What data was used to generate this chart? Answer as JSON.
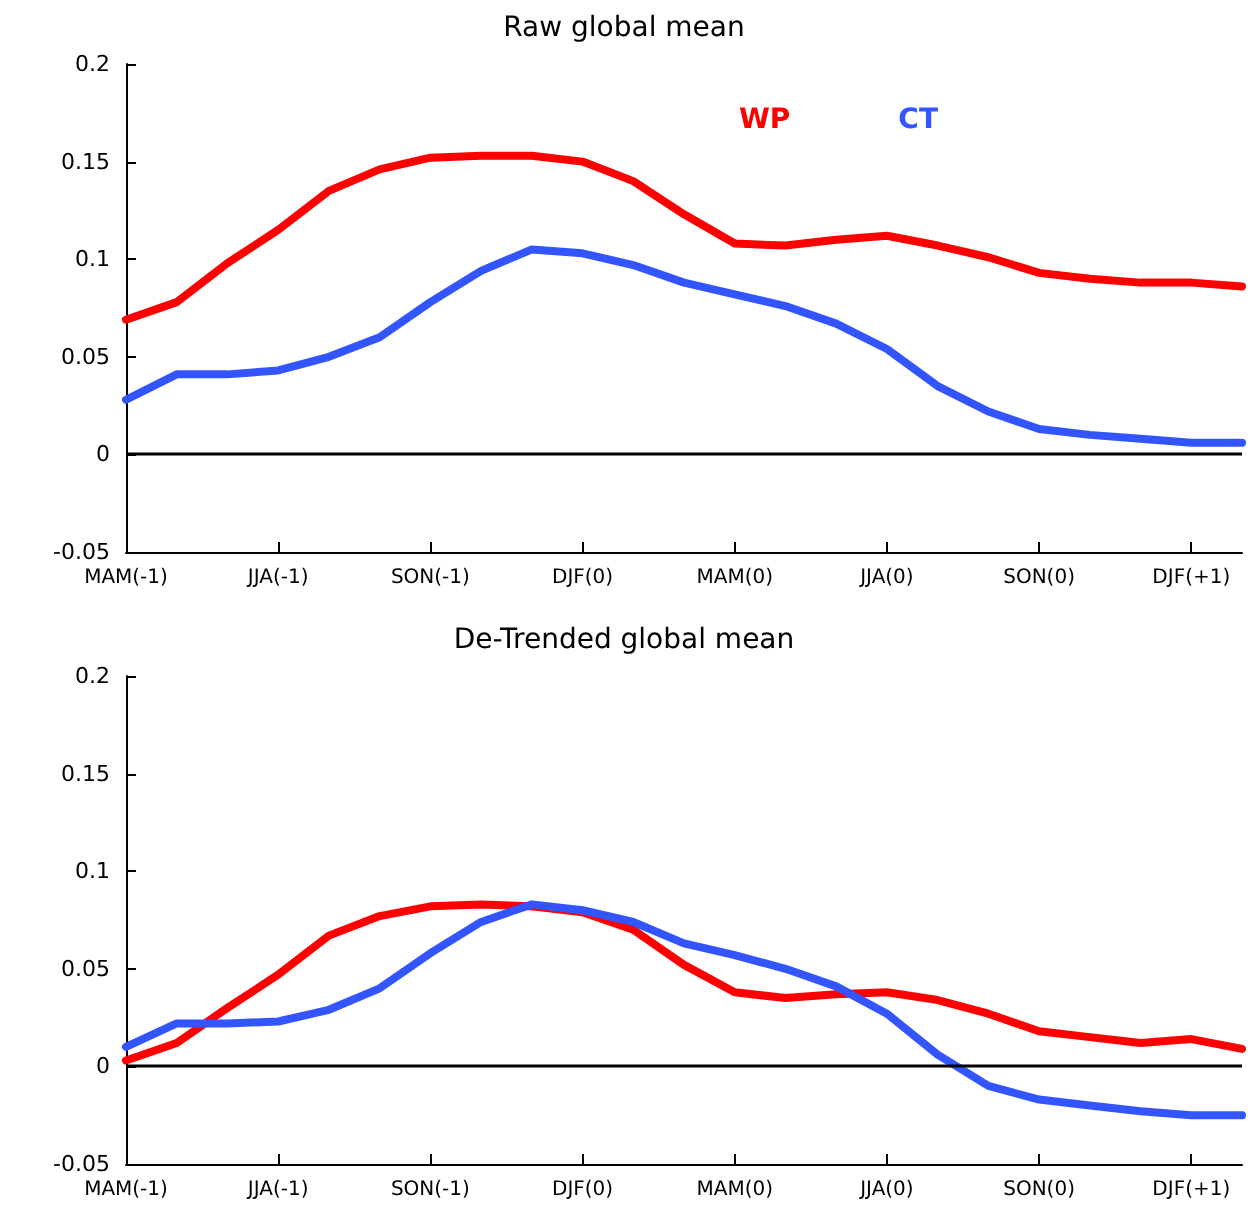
{
  "chart_data": [
    {
      "type": "line",
      "title": "Raw global mean",
      "categories": [
        "MAM(-1)",
        null,
        null,
        "JJA(-1)",
        null,
        null,
        "SON(-1)",
        null,
        null,
        "DJF(0)",
        null,
        null,
        "MAM(0)",
        null,
        null,
        "JJA(0)",
        null,
        null,
        "SON(0)",
        null,
        null,
        "DJF(+1)",
        null
      ],
      "series": [
        {
          "name": "WP",
          "color": "#ff0000",
          "values": [
            0.069,
            0.078,
            0.098,
            0.115,
            0.135,
            0.146,
            0.152,
            0.153,
            0.153,
            0.15,
            0.14,
            0.123,
            0.108,
            0.107,
            0.11,
            0.112,
            0.107,
            0.101,
            0.093,
            0.09,
            0.088,
            0.088,
            0.086
          ]
        },
        {
          "name": "CT",
          "color": "#3355ff",
          "values": [
            0.028,
            0.041,
            0.041,
            0.043,
            0.05,
            0.06,
            0.078,
            0.094,
            0.105,
            0.103,
            0.097,
            0.088,
            0.082,
            0.076,
            0.067,
            0.054,
            0.035,
            0.022,
            0.013,
            0.01,
            0.008,
            0.006,
            0.006
          ]
        }
      ],
      "ylim": [
        -0.05,
        0.2
      ],
      "yticks": [
        -0.05,
        0,
        0.05,
        0.1,
        0.15,
        0.2
      ],
      "ref_lines": [
        {
          "axis": "y",
          "value": 0,
          "color": "#000000"
        }
      ],
      "legend": "top right",
      "marker": "none",
      "line_style": "solid"
    },
    {
      "type": "line",
      "title": "De-Trended global mean",
      "categories": [
        "MAM(-1)",
        null,
        null,
        "JJA(-1)",
        null,
        null,
        "SON(-1)",
        null,
        null,
        "DJF(0)",
        null,
        null,
        "MAM(0)",
        null,
        null,
        "JJA(0)",
        null,
        null,
        "SON(0)",
        null,
        null,
        "DJF(+1)",
        null
      ],
      "series": [
        {
          "color": "#ff0000",
          "values": [
            0.003,
            0.012,
            0.03,
            0.047,
            0.067,
            0.077,
            0.082,
            0.083,
            0.082,
            0.079,
            0.07,
            0.052,
            0.038,
            0.035,
            0.037,
            0.038,
            0.034,
            0.027,
            0.018,
            0.015,
            0.012,
            0.014,
            0.009
          ]
        },
        {
          "color": "#3355ff",
          "values": [
            0.01,
            0.022,
            0.022,
            0.023,
            0.029,
            0.04,
            0.058,
            0.074,
            0.083,
            0.08,
            0.074,
            0.063,
            0.057,
            0.05,
            0.041,
            0.027,
            0.006,
            -0.01,
            -0.017,
            -0.02,
            -0.023,
            -0.025,
            -0.025
          ]
        }
      ],
      "ylim": [
        -0.05,
        0.2
      ],
      "yticks": [
        -0.05,
        0,
        0.05,
        0.1,
        0.15,
        0.2
      ],
      "ref_lines": [
        {
          "axis": "y",
          "value": 0,
          "color": "#000000"
        }
      ],
      "marker": "none",
      "line_style": "solid"
    }
  ]
}
